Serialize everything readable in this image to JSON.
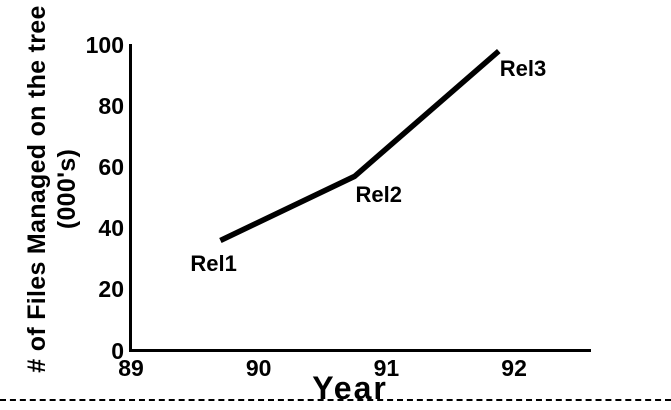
{
  "chart_data": {
    "type": "line",
    "title": "",
    "xlabel": "Year",
    "ylabel": "# of Files Managed on the tree (000's)",
    "ylabel_lines": [
      "# of Files Managed on the tree",
      "(000's)"
    ],
    "xticks": [
      89,
      90,
      91,
      92
    ],
    "yticks": [
      0,
      20,
      40,
      60,
      80,
      100
    ],
    "xlim": [
      89,
      92.6
    ],
    "ylim": [
      0,
      100
    ],
    "grid": false,
    "legend": false,
    "color": "#000000",
    "background": "#ffffff",
    "series": [
      {
        "name": "files_managed_000s",
        "points": [
          {
            "x": 89.7,
            "y": 36,
            "label": "Rel1"
          },
          {
            "x": 90.75,
            "y": 57,
            "label": "Rel2"
          },
          {
            "x": 91.88,
            "y": 98,
            "label": "Rel3"
          }
        ]
      }
    ]
  }
}
